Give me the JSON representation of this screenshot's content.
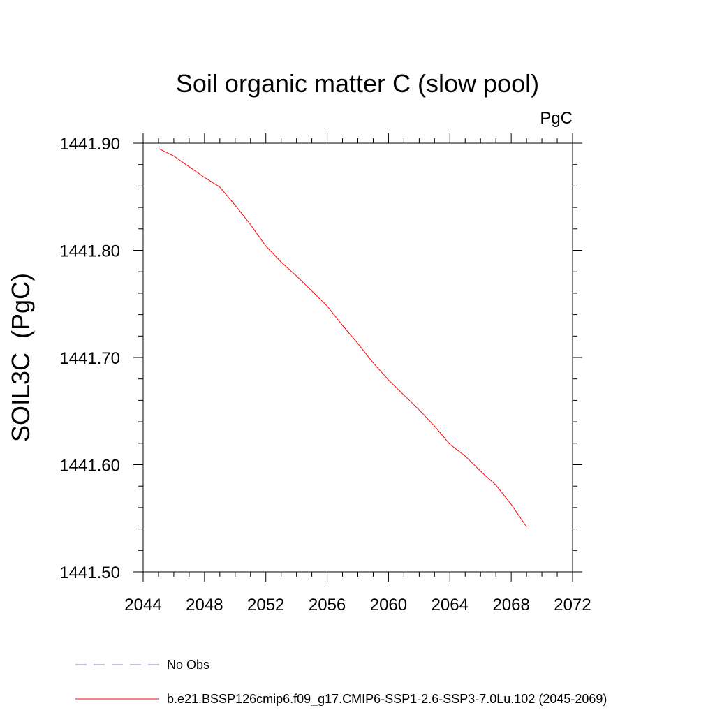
{
  "chart_data": {
    "type": "line",
    "title": "Soil organic matter C (slow pool)",
    "units": "PgC",
    "xlabel": "",
    "ylabel": "SOIL3C  (PgC)",
    "xlim": [
      2044,
      2072
    ],
    "ylim": [
      1441.5,
      1441.9
    ],
    "x_ticks": [
      2044,
      2048,
      2052,
      2056,
      2060,
      2064,
      2068,
      2072
    ],
    "x_tick_labels": [
      "2044",
      "2048",
      "2052",
      "2056",
      "2060",
      "2064",
      "2068",
      "2072"
    ],
    "y_ticks": [
      1441.5,
      1441.6,
      1441.7,
      1441.8,
      1441.9
    ],
    "y_tick_labels": [
      "1441.50",
      "1441.60",
      "1441.70",
      "1441.80",
      "1441.90"
    ],
    "legend": [
      {
        "name": "No Obs",
        "style": "dashed",
        "color": "#8a7bb8"
      },
      {
        "name": "b.e21.BSSP126cmip6.f09_g17.CMIP6-SSP1-2.6-SSP3-7.0Lu.102 (2045-2069)",
        "style": "solid",
        "color": "#ff0000"
      }
    ],
    "series": [
      {
        "name": "b.e21.BSSP126cmip6.f09_g17.CMIP6-SSP1-2.6-SSP3-7.0Lu.102 (2045-2069)",
        "color": "#ff0000",
        "x": [
          2045,
          2046,
          2047,
          2048,
          2049,
          2050,
          2051,
          2052,
          2053,
          2054,
          2055,
          2056,
          2057,
          2058,
          2059,
          2060,
          2061,
          2062,
          2063,
          2064,
          2065,
          2066,
          2067,
          2068,
          2069
        ],
        "values": [
          1441.895,
          1441.888,
          1441.878,
          1441.868,
          1441.859,
          1441.842,
          1441.824,
          1441.804,
          1441.789,
          1441.776,
          1441.762,
          1441.748,
          1441.73,
          1441.713,
          1441.695,
          1441.679,
          1441.665,
          1441.651,
          1441.636,
          1441.619,
          1441.608,
          1441.594,
          1441.581,
          1441.563,
          1441.542
        ]
      }
    ]
  }
}
